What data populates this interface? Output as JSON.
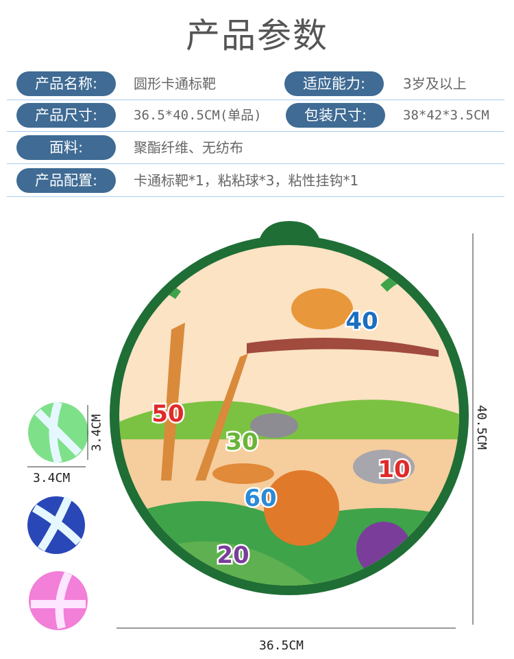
{
  "title": "产品参数",
  "specs": [
    {
      "label": "产品名称:",
      "value": "圆形卡通标靶",
      "label2": "适应能力:",
      "value2": "3岁及以上"
    },
    {
      "label": "产品尺寸:",
      "value": "36.5*40.5CM(单品)",
      "label2": "包装尺寸:",
      "value2": "38*42*3.5CM"
    },
    {
      "label": "面料:",
      "value": "聚酯纤维、无纺布"
    },
    {
      "label": "产品配置:",
      "value": "卡通标靶*1，粘粘球*3，粘性挂钩*1"
    }
  ],
  "colors": {
    "pill": "#3f6b94",
    "divider": "#a9cdef",
    "board_rim": "#1f6e35"
  },
  "board": {
    "scores": [
      {
        "text": "40",
        "color": "#1a6fc0"
      },
      {
        "text": "50",
        "color": "#e02a2a"
      },
      {
        "text": "30",
        "color": "#6ab43a"
      },
      {
        "text": "10",
        "color": "#e02a2a"
      },
      {
        "text": "60",
        "color": "#2a8ad8"
      },
      {
        "text": "20",
        "color": "#7a3d9a"
      }
    ]
  },
  "dimensions": {
    "width": "36.5CM",
    "height": "40.5CM",
    "ball_width": "3.4CM",
    "ball_height": "3.4CM"
  },
  "balls": [
    {
      "color": "#7fe08a"
    },
    {
      "color": "#2a47b8"
    },
    {
      "color": "#f27fd8"
    }
  ]
}
